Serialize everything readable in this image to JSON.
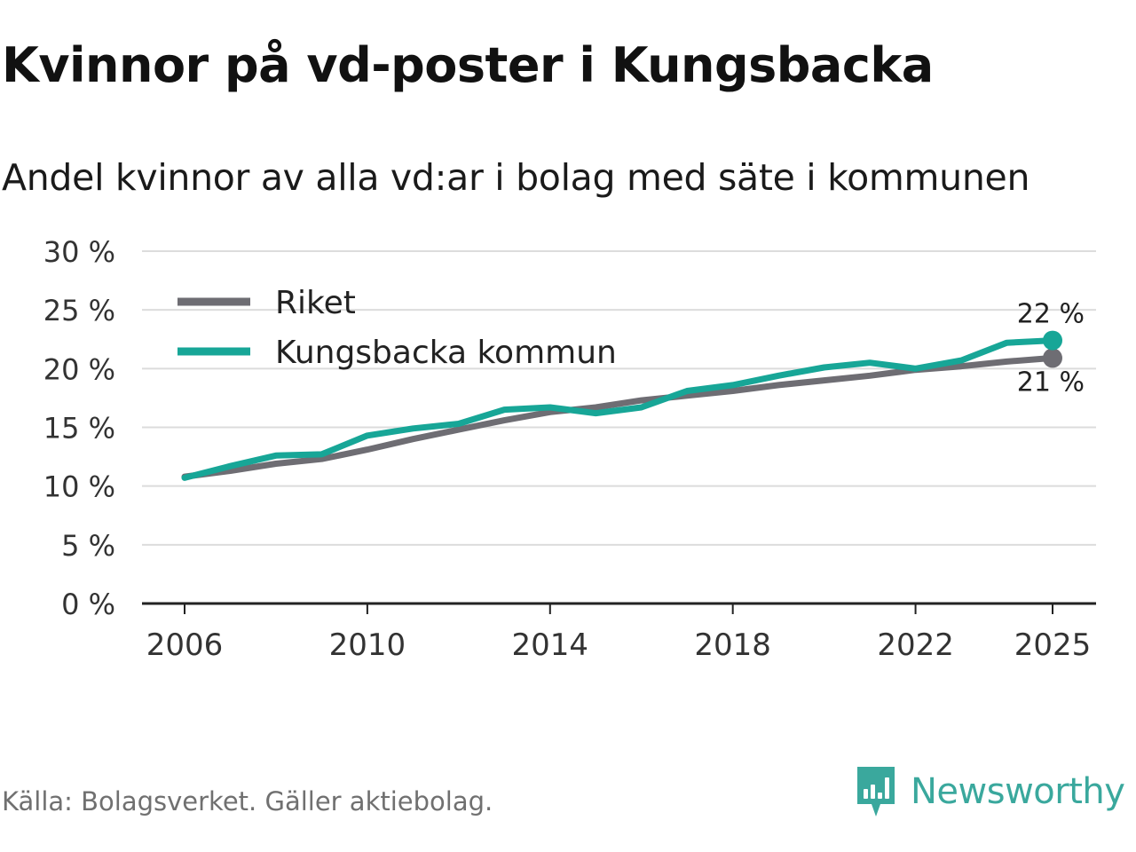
{
  "header": {
    "title": "Kvinnor på vd-poster i Kungsbacka",
    "subtitle": "Andel kvinnor av alla vd:ar i bolag med säte i kommunen"
  },
  "footer": {
    "source": "Källa: Bolagsverket. Gäller aktiebolag.",
    "brand": "Newsworthy",
    "brand_icon": "newsworthy-logo-icon"
  },
  "colors": {
    "riket": "#6e6d73",
    "kungsbacka": "#17a697",
    "grid": "#dcdcdc",
    "axis": "#222222",
    "brand": "#3aa89d"
  },
  "chart_data": {
    "type": "line",
    "title": "Kvinnor på vd-poster i Kungsbacka",
    "xlabel": "",
    "ylabel": "",
    "x": [
      2006,
      2007,
      2008,
      2009,
      2010,
      2011,
      2012,
      2013,
      2014,
      2015,
      2016,
      2017,
      2018,
      2019,
      2020,
      2021,
      2022,
      2023,
      2024,
      2025
    ],
    "xticks": [
      2006,
      2010,
      2014,
      2018,
      2022,
      2025
    ],
    "xtick_labels": [
      "2006",
      "2010",
      "2014",
      "2018",
      "2022",
      "2025"
    ],
    "xlim": [
      2006,
      2025
    ],
    "ylim": [
      0,
      30
    ],
    "yticks": [
      0,
      5,
      10,
      15,
      20,
      25,
      30
    ],
    "ytick_labels": [
      "0 %",
      "5 %",
      "10 %",
      "15 %",
      "20 %",
      "25 %",
      "30 %"
    ],
    "grid": true,
    "legend_position": "top-left",
    "series": [
      {
        "name": "Riket",
        "key": "riket",
        "values": [
          10.8,
          11.3,
          11.9,
          12.3,
          13.1,
          14.0,
          14.8,
          15.6,
          16.3,
          16.7,
          17.3,
          17.7,
          18.1,
          18.6,
          19.0,
          19.4,
          19.9,
          20.2,
          20.6,
          20.9
        ],
        "end_label": "21 %"
      },
      {
        "name": "Kungsbacka kommun",
        "key": "kungsbacka",
        "values": [
          10.7,
          11.7,
          12.6,
          12.7,
          14.3,
          14.9,
          15.3,
          16.5,
          16.7,
          16.2,
          16.7,
          18.1,
          18.6,
          19.4,
          20.1,
          20.5,
          20.0,
          20.7,
          22.2,
          22.4
        ],
        "end_label": "22 %"
      }
    ]
  }
}
